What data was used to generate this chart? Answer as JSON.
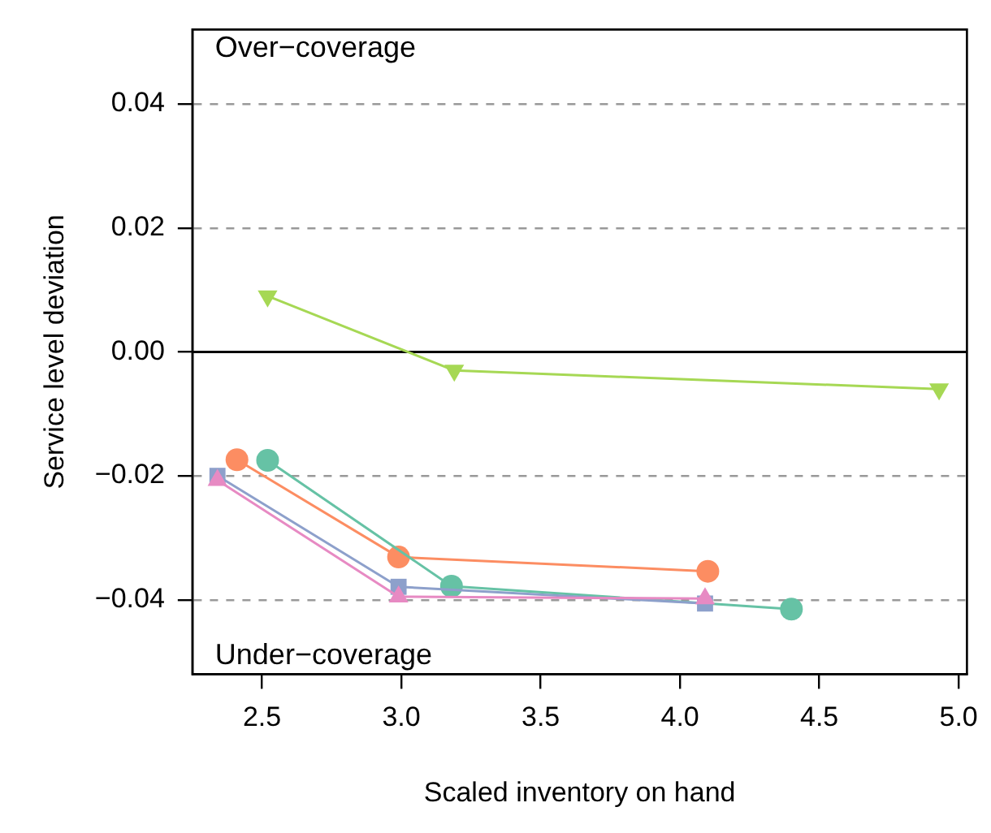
{
  "chart_data": {
    "type": "line",
    "xlabel": "Scaled inventory on hand",
    "ylabel": "Service level deviation",
    "annotations": [
      "Over−coverage",
      "Under−coverage"
    ],
    "xlim": [
      2.25,
      5.03
    ],
    "ylim": [
      -0.052,
      0.052
    ],
    "xticks": [
      {
        "value": 2.5,
        "label": "2.5"
      },
      {
        "value": 3,
        "label": "3.0"
      },
      {
        "value": 3.5,
        "label": "3.5"
      },
      {
        "value": 4,
        "label": "4.0"
      },
      {
        "value": 4.5,
        "label": "4.5"
      },
      {
        "value": 5,
        "label": "5.0"
      }
    ],
    "yticks": [
      {
        "value": -0.04,
        "label": "−0.04"
      },
      {
        "value": -0.02,
        "label": "−0.02"
      },
      {
        "value": 0,
        "label": "0.00"
      },
      {
        "value": 0.02,
        "label": "0.02"
      },
      {
        "value": 0.04,
        "label": "0.04"
      }
    ],
    "grid": "y",
    "legend": false,
    "line_style": "solid",
    "ref_lines": [
      {
        "axis": "y",
        "value": 0,
        "color": "#000000"
      }
    ],
    "series": [
      {
        "color": "#a6d854",
        "marker": "triangle-down",
        "x": [
          2.52,
          3.19,
          4.93
        ],
        "values": [
          0.009,
          -0.003,
          -0.006
        ]
      },
      {
        "color": "#fc8d62",
        "marker": "circle",
        "x": [
          2.41,
          2.99,
          4.1
        ],
        "values": [
          -0.0174,
          -0.0331,
          -0.0354
        ]
      },
      {
        "color": "#66c2a5",
        "marker": "circle",
        "x": [
          2.52,
          3.18,
          4.4
        ],
        "values": [
          -0.0175,
          -0.0378,
          -0.0415
        ]
      },
      {
        "color": "#8da0cb",
        "marker": "square",
        "x": [
          2.34,
          2.99,
          4.09
        ],
        "values": [
          -0.02,
          -0.0379,
          -0.0406
        ]
      },
      {
        "color": "#e78ac3",
        "marker": "triangle",
        "x": [
          2.34,
          2.99,
          4.09
        ],
        "values": [
          -0.0207,
          -0.0395,
          -0.0398
        ]
      }
    ]
  }
}
